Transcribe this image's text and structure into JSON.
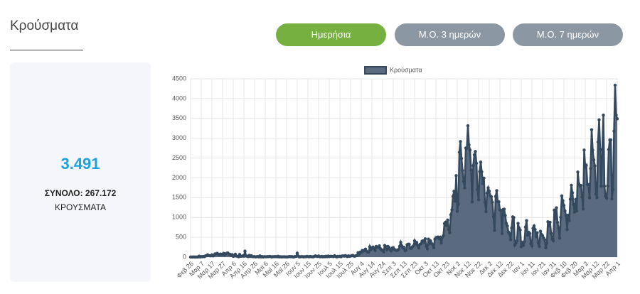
{
  "header": {
    "title": "Κρούσματα"
  },
  "buttons": [
    "Ημερήσια",
    "Μ.Ο. 3 ημερών",
    "Μ.Ο. 7 ημερών"
  ],
  "summary": {
    "value": "3.491",
    "total": "ΣΥΝΟΛΟ: 267.172",
    "unit": "ΚΡΟΥΣΜΑΤΑ"
  },
  "chart_data": {
    "type": "line",
    "grid": true,
    "legend": "top",
    "area_color": "#5b6b7f",
    "categories": [
      "Φεβ 26",
      null,
      null,
      null,
      null,
      null,
      null,
      null,
      null,
      null,
      "Μαρ 7",
      null,
      null,
      null,
      null,
      null,
      null,
      null,
      null,
      null,
      "Μαρ 17",
      null,
      null,
      null,
      null,
      null,
      null,
      null,
      null,
      null,
      "Μαρ 27",
      null,
      null,
      null,
      null,
      null,
      null,
      null,
      null,
      null,
      "Απρ 6",
      null,
      null,
      null,
      null,
      null,
      null,
      null,
      null,
      null,
      "Απρ 16",
      null,
      null,
      null,
      null,
      null,
      null,
      null,
      null,
      null,
      "Απρ 26",
      null,
      null,
      null,
      null,
      null,
      null,
      null,
      null,
      null,
      "Μαϊ 6",
      null,
      null,
      null,
      null,
      null,
      null,
      null,
      null,
      null,
      "Μαϊ 16",
      null,
      null,
      null,
      null,
      null,
      null,
      null,
      null,
      null,
      "Μαϊ 26",
      null,
      null,
      null,
      null,
      null,
      null,
      null,
      null,
      null,
      "Ιουν 5",
      null,
      null,
      null,
      null,
      null,
      null,
      null,
      null,
      null,
      "Ιουν 15",
      null,
      null,
      null,
      null,
      null,
      null,
      null,
      null,
      null,
      "Ιουν 25",
      null,
      null,
      null,
      null,
      null,
      null,
      null,
      null,
      null,
      "Ιουλ 5",
      null,
      null,
      null,
      null,
      null,
      null,
      null,
      null,
      null,
      "Ιουλ 15",
      null,
      null,
      null,
      null,
      null,
      null,
      null,
      null,
      null,
      "Ιουλ 25",
      null,
      null,
      null,
      null,
      null,
      null,
      null,
      null,
      null,
      "Αυγ 4",
      null,
      null,
      null,
      null,
      null,
      null,
      null,
      null,
      null,
      "Αυγ 14",
      null,
      null,
      null,
      null,
      null,
      null,
      null,
      null,
      null,
      "Αυγ 24",
      null,
      null,
      null,
      null,
      null,
      null,
      null,
      null,
      null,
      "Σεπ 3",
      null,
      null,
      null,
      null,
      null,
      null,
      null,
      null,
      null,
      "Σεπ 13",
      null,
      null,
      null,
      null,
      null,
      null,
      null,
      null,
      null,
      "Σεπ 23",
      null,
      null,
      null,
      null,
      null,
      null,
      null,
      null,
      null,
      "Οκτ 3",
      null,
      null,
      null,
      null,
      null,
      null,
      null,
      null,
      null,
      "Οκτ 13",
      null,
      null,
      null,
      null,
      null,
      null,
      null,
      null,
      null,
      "Οκτ 23",
      null,
      null,
      null,
      null,
      null,
      null,
      null,
      null,
      null,
      "Νοε 2",
      null,
      null,
      null,
      null,
      null,
      null,
      null,
      null,
      null,
      "Νοε 12",
      null,
      null,
      null,
      null,
      null,
      null,
      null,
      null,
      null,
      "Νοε 22",
      null,
      null,
      null,
      null,
      null,
      null,
      null,
      null,
      null,
      "Δεκ 2",
      null,
      null,
      null,
      null,
      null,
      null,
      null,
      null,
      null,
      "Δεκ 12",
      null,
      null,
      null,
      null,
      null,
      null,
      null,
      null,
      null,
      "Δεκ 22",
      null,
      null,
      null,
      null,
      null,
      null,
      null,
      null,
      null,
      "Ιαν 1",
      null,
      null,
      null,
      null,
      null,
      null,
      null,
      null,
      null,
      "Ιαν 11",
      null,
      null,
      null,
      null,
      null,
      null,
      null,
      null,
      null,
      "Ιαν 21",
      null,
      null,
      null,
      null,
      null,
      null,
      null,
      null,
      null,
      "Ιαν 31",
      null,
      null,
      null,
      null,
      null,
      null,
      null,
      null,
      null,
      "Φεβ 10",
      null,
      null,
      null,
      null,
      null,
      null,
      null,
      null,
      null,
      "Φεβ 20",
      null,
      null,
      null,
      null,
      null,
      null,
      null,
      null,
      null,
      "Μαρ 2",
      null,
      null,
      null,
      null,
      null,
      null,
      null,
      null,
      null,
      "Μαρ 12",
      null,
      null,
      null,
      null,
      null,
      null,
      null,
      null,
      null,
      "Μαρ 22",
      null,
      null,
      null,
      null,
      null,
      null,
      null,
      null,
      null,
      "Απρ 1"
    ],
    "series": [
      {
        "name": "Κρούσματα",
        "color": "#34495e",
        "values": [
          0,
          1,
          0,
          4,
          0,
          0,
          2,
          1,
          24,
          0,
          14,
          7,
          17,
          11,
          30,
          39,
          58,
          38,
          35,
          33,
          56,
          31,
          46,
          81,
          79,
          94,
          71,
          60,
          78,
          71,
          64,
          95,
          56,
          78,
          100,
          102,
          75,
          70,
          44,
          62,
          20,
          28,
          72,
          25,
          19,
          8,
          66,
          20,
          19,
          33,
          22,
          150,
          28,
          22,
          11,
          44,
          14,
          34,
          10,
          10,
          11,
          3,
          9,
          15,
          4,
          29,
          4,
          14,
          2,
          10,
          8,
          7,
          11,
          10,
          16,
          12,
          2,
          10,
          9,
          11,
          11,
          7,
          22,
          4,
          9,
          3,
          5,
          6,
          8,
          4,
          4,
          3,
          10,
          15,
          9,
          12,
          2,
          3,
          15,
          17,
          97,
          25,
          4,
          8,
          13,
          11,
          4,
          10,
          8,
          18,
          12,
          5,
          16,
          10,
          7,
          5,
          18,
          29,
          21,
          14,
          28,
          9,
          8,
          19,
          6,
          14,
          8,
          21,
          9,
          26,
          11,
          20,
          18,
          17,
          12,
          34,
          16,
          4,
          19,
          15,
          20,
          8,
          27,
          30,
          23,
          36,
          25,
          12,
          30,
          18,
          26,
          33,
          44,
          25,
          24,
          35,
          40,
          110,
          75,
          124,
          121,
          167,
          153,
          169,
          203,
          151,
          126,
          125,
          262,
          186,
          230,
          254,
          217,
          168,
          269,
          255,
          250,
          284,
          212,
          178,
          174,
          134,
          293,
          266,
          191,
          270,
          243,
          190,
          156,
          226,
          238,
          191,
          180,
          168,
          174,
          192,
          273,
          372,
          284,
          229,
          248,
          161,
          179,
          312,
          326,
          323,
          224,
          221,
          258,
          286,
          408,
          334,
          369,
          293,
          233,
          322,
          336,
          402,
          412,
          374,
          460,
          265,
          214,
          453,
          347,
          408,
          345,
          312,
          236,
          452,
          488,
          501,
          508,
          465,
          500,
          354,
          497,
          541,
          845,
          882,
          795,
          935,
          696,
          612,
          1070,
          1193,
          1533,
          1664,
          1412,
          2056,
          1155,
          1341,
          2646,
          2917,
          2489,
          2186,
          1913,
          1746,
          2752,
          2748,
          3316,
          2835,
          2701,
          2198,
          1395,
          2311,
          2581,
          2666,
          2367,
          1698,
          1448,
          2156,
          2399,
          2152,
          1854,
          1993,
          1382,
          1149,
          1614,
          1747,
          1664,
          1546,
          1524,
          1382,
          1023,
          673,
          1533,
          1678,
          1399,
          1395,
          1193,
          1172,
          593,
          1201,
          1209,
          1048,
          853,
          785,
          630,
          583,
          441,
          733,
          1015,
          998,
          304,
          351,
          410,
          850,
          732,
          682,
          262,
          362,
          302,
          392,
          758,
          920,
          554,
          626,
          596,
          340,
          285,
          726,
          787,
          696,
          512,
          614,
          346,
          269,
          652,
          573,
          542,
          480,
          435,
          236,
          348,
          890,
          802,
          880,
          597,
          454,
          416,
          1186,
          971,
          1245,
          875,
          733,
          476,
          1005,
          1546,
          1423,
          1303,
          1165,
          1051,
          693,
          1058,
          924,
          1457,
          1813,
          1623,
          1328,
          1135,
          1456,
          1165,
          2147,
          1855,
          1790,
          1807,
          1515,
          1214,
          2702,
          2276,
          2317,
          1836,
          1830,
          1498,
          2236,
          3215,
          2702,
          2455,
          2303,
          1588,
          1501,
          2906,
          3465,
          2724,
          1790,
          2702,
          3585,
          1790,
          1537,
          1488,
          1795,
          2717,
          2958,
          2957,
          1470,
          1700,
          3179,
          4340,
          3586,
          3491
        ]
      }
    ],
    "ylim": [
      0,
      4500
    ],
    "yticks": [
      0,
      500,
      1000,
      1500,
      2000,
      2500,
      3000,
      3500,
      4000,
      4500
    ]
  }
}
